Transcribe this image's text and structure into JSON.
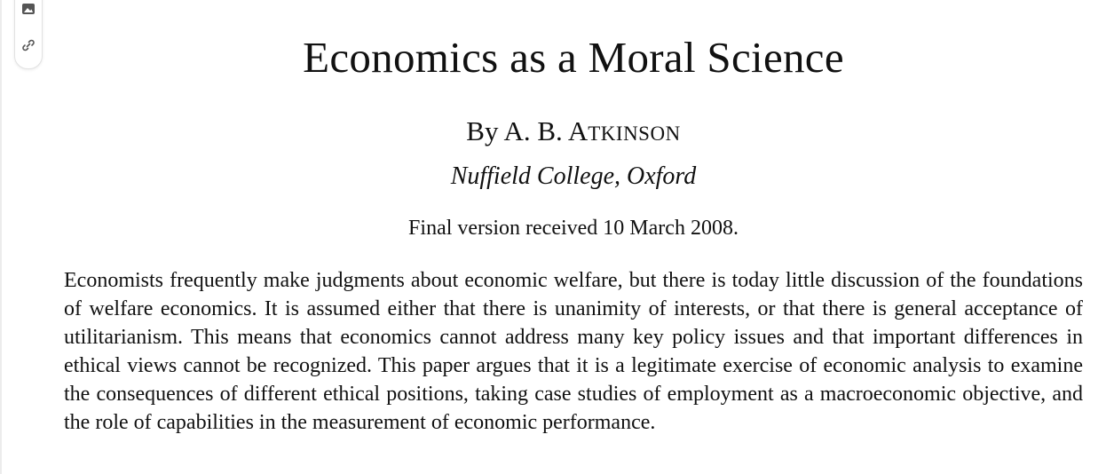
{
  "toolbar": {
    "icons": [
      "image-icon",
      "link-icon"
    ]
  },
  "paper": {
    "title": "Economics as a Moral Science",
    "byline_prefix": "By A. B.",
    "author_surname_initial": "A",
    "author_surname_rest": "TKINSON",
    "affiliation": "Nuffield College, Oxford",
    "received": "Final version received 10 March 2008.",
    "abstract": "Economists frequently make judgments about economic welfare, but there is today little discussion of the foundations of welfare economics. It is assumed either that there is unanimity of interests, or that there is general acceptance of utilitarianism. This means that economics cannot address many key policy issues and that important differences in ethical views cannot be recognized. This paper argues that it is a legitimate exercise of economic analysis to examine the consequences of different ethical positions, taking case studies of employment as a macroeconomic objective, and the role of capabilities in the measurement of economic performance."
  }
}
